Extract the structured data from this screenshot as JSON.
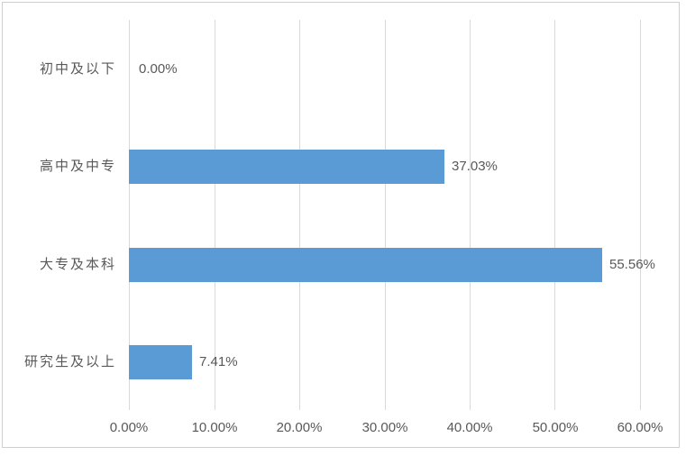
{
  "chart_data": {
    "type": "bar",
    "orientation": "horizontal",
    "title": "",
    "categories": [
      "初中及以下",
      "高中及中专",
      "大专及本科",
      "研究生及以上"
    ],
    "values": [
      0.0,
      37.03,
      55.56,
      7.41
    ],
    "data_labels": [
      "0.00%",
      "37.03%",
      "55.56%",
      "7.41%"
    ],
    "x_tick_labels": [
      "0.00%",
      "10.00%",
      "20.00%",
      "30.00%",
      "40.00%",
      "50.00%",
      "60.00%"
    ],
    "x_tick_values": [
      0,
      10,
      20,
      30,
      40,
      50,
      60
    ],
    "xlim": [
      0,
      60
    ],
    "grid": true,
    "legend": "none",
    "data_label_position": "outside-end",
    "bar_color": "#5B9BD5",
    "gridline_color": "#D9D9D9",
    "label_color": "#595959",
    "border_color": "#CFCFCF",
    "background_color": "#FFFFFF"
  }
}
